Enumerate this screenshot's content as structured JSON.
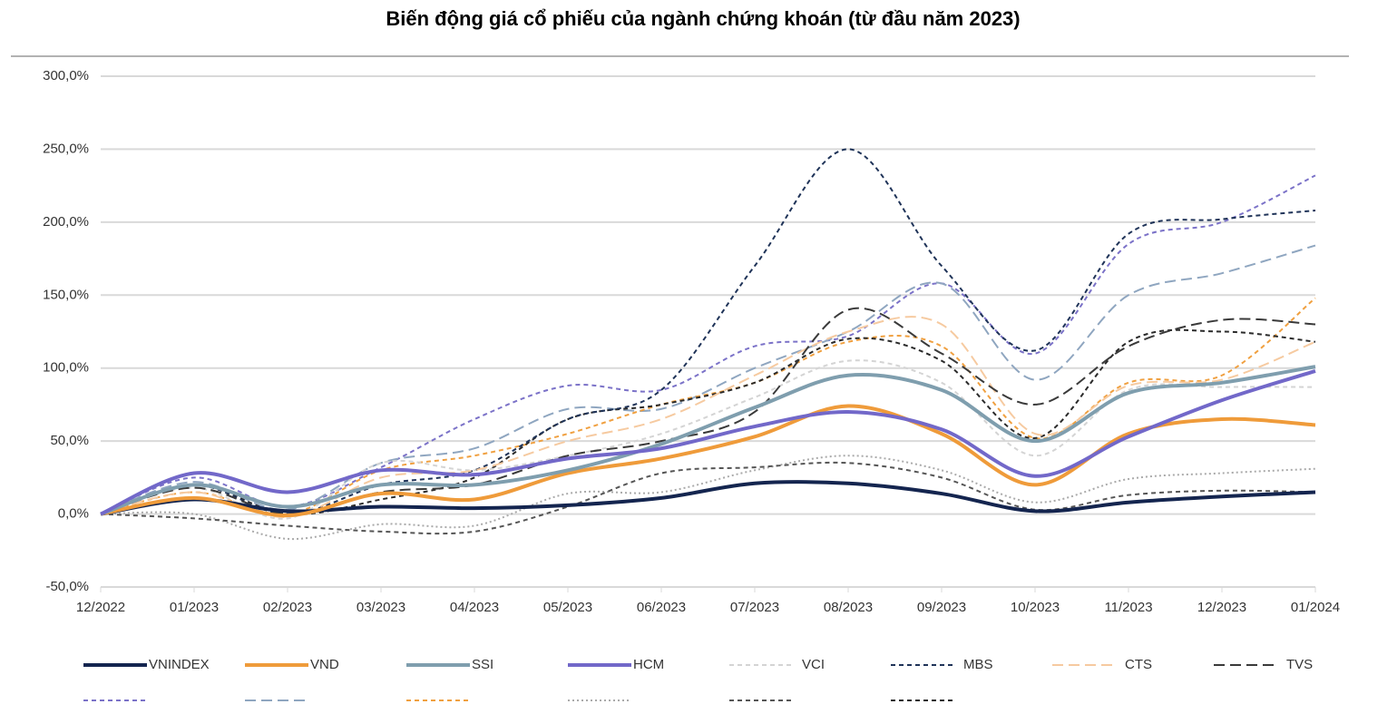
{
  "chart_data": {
    "type": "line",
    "title": "Biến động giá cổ phiếu của ngành chứng khoán (từ đầu năm 2023)",
    "categories": [
      "12/2022",
      "01/2023",
      "02/2023",
      "03/2023",
      "04/2023",
      "05/2023",
      "06/2023",
      "07/2023",
      "08/2023",
      "09/2023",
      "10/2023",
      "11/2023",
      "12/2023",
      "01/2024"
    ],
    "ylim": [
      -50,
      300
    ],
    "yticks": [
      {
        "value": -50,
        "label": "-50,0%"
      },
      {
        "value": 0,
        "label": "0,0%"
      },
      {
        "value": 50,
        "label": "50,0%"
      },
      {
        "value": 100,
        "label": "100,0%"
      },
      {
        "value": 150,
        "label": "150,0%"
      },
      {
        "value": 200,
        "label": "200,0%"
      },
      {
        "value": 250,
        "label": "250,0%"
      },
      {
        "value": 300,
        "label": "300,0%"
      }
    ],
    "grid": true,
    "series": [
      {
        "color": "#7b72c8",
        "style": "dashed",
        "values": [
          0,
          25,
          5,
          32,
          65,
          88,
          85,
          115,
          122,
          158,
          110,
          185,
          200,
          232
        ]
      },
      {
        "color": "#8fa6c0",
        "style": "longdash",
        "values": [
          0,
          22,
          3,
          35,
          45,
          72,
          72,
          100,
          125,
          158,
          92,
          150,
          165,
          184
        ]
      },
      {
        "color": "#f0a040",
        "style": "dashed",
        "values": [
          0,
          15,
          0,
          30,
          40,
          55,
          75,
          90,
          118,
          115,
          52,
          90,
          95,
          148
        ]
      },
      {
        "color": "#aaaaaa",
        "style": "dotted",
        "values": [
          0,
          0,
          -17,
          -7,
          -8,
          14,
          15,
          30,
          40,
          30,
          8,
          24,
          28,
          31
        ]
      },
      {
        "color": "#555555",
        "style": "dashed",
        "values": [
          0,
          -3,
          -8,
          -12,
          -12,
          5,
          28,
          32,
          35,
          25,
          3,
          13,
          16,
          15
        ]
      },
      {
        "color": "#2a2a2a",
        "style": "dashed",
        "values": [
          0,
          20,
          0,
          10,
          25,
          65,
          75,
          90,
          120,
          105,
          52,
          118,
          125,
          118
        ]
      },
      {
        "name": "VCI",
        "color": "#d4d4d4",
        "style": "dashed",
        "values": [
          0,
          18,
          -3,
          35,
          30,
          40,
          55,
          80,
          105,
          90,
          40,
          85,
          87,
          87
        ]
      },
      {
        "name": "MBS",
        "color": "#1f3358",
        "style": "dashed",
        "values": [
          0,
          20,
          0,
          20,
          30,
          65,
          85,
          170,
          250,
          170,
          112,
          192,
          202,
          208
        ]
      },
      {
        "name": "CTS",
        "color": "#f6caa0",
        "style": "longdash",
        "values": [
          0,
          15,
          -2,
          25,
          30,
          50,
          65,
          95,
          125,
          130,
          55,
          88,
          92,
          118
        ]
      },
      {
        "name": "TVS",
        "color": "#3a3a3a",
        "style": "longdash",
        "values": [
          0,
          18,
          0,
          15,
          20,
          40,
          50,
          70,
          140,
          110,
          75,
          115,
          133,
          130
        ]
      },
      {
        "name": "VNINDEX",
        "color": "#14254f",
        "style": "solid",
        "values": [
          0,
          10,
          2,
          5,
          4,
          6,
          11,
          21,
          21,
          14,
          2,
          8,
          12,
          15
        ]
      },
      {
        "name": "VND",
        "color": "#ef9b3a",
        "style": "solid",
        "values": [
          0,
          11,
          -1,
          14,
          10,
          28,
          38,
          53,
          74,
          55,
          20,
          55,
          65,
          61
        ]
      },
      {
        "name": "SSI",
        "color": "#7f9eae",
        "style": "solid",
        "values": [
          0,
          20,
          5,
          20,
          20,
          30,
          48,
          73,
          95,
          85,
          50,
          83,
          90,
          101
        ]
      },
      {
        "name": "HCM",
        "color": "#7268c9",
        "style": "solid",
        "values": [
          0,
          28,
          15,
          30,
          27,
          38,
          45,
          60,
          70,
          58,
          26,
          53,
          78,
          98
        ]
      }
    ],
    "legend_order": [
      "VNINDEX",
      "VND",
      "SSI",
      "HCM",
      "VCI",
      "MBS",
      "CTS",
      "TVS"
    ]
  }
}
